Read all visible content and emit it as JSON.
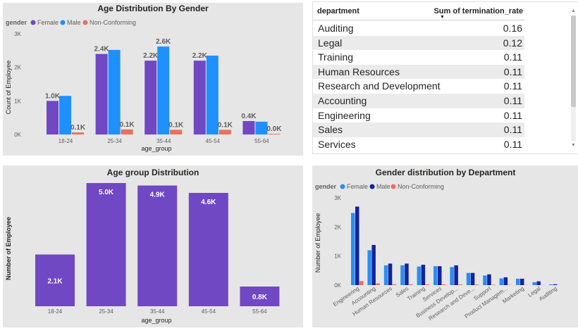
{
  "colors": {
    "female": "#7048c4",
    "male": "#1e90ff",
    "non_conforming": "#e8715f",
    "purple": "#7048c4",
    "dept_female": "#2b8ef0",
    "dept_male": "#12239e",
    "dept_nc": "#e8715f"
  },
  "age_gender_chart": {
    "title": "Age Distribution By Gender",
    "legend_title": "gender",
    "ylabel": "Count of Employee",
    "xlabel": "age_group",
    "y_ticks": [
      "0K",
      "1K",
      "2K",
      "3K"
    ]
  },
  "termination_table": {
    "col_department": "department",
    "col_rate": "Sum of termination_rate",
    "rows": [
      {
        "department": "Auditing",
        "rate": "0.16"
      },
      {
        "department": "Legal",
        "rate": "0.12"
      },
      {
        "department": "Training",
        "rate": "0.11"
      },
      {
        "department": "Human Resources",
        "rate": "0.11"
      },
      {
        "department": "Research and Development",
        "rate": "0.11"
      },
      {
        "department": "Accounting",
        "rate": "0.11"
      },
      {
        "department": "Engineering",
        "rate": "0.11"
      },
      {
        "department": "Sales",
        "rate": "0.11"
      },
      {
        "department": "Services",
        "rate": "0.11"
      }
    ]
  },
  "age_group_chart": {
    "title": "Age group Distribution",
    "ylabel": "Number of Employee",
    "xlabel": "age_group"
  },
  "dept_gender_chart": {
    "title": "Gender distribution by Department",
    "legend_title": "gender",
    "ylabel": "Number of Employee",
    "y_ticks": [
      "0K",
      "1K",
      "2K",
      "3K"
    ]
  },
  "chart_data": [
    {
      "type": "bar",
      "title": "Age Distribution By Gender",
      "xlabel": "age_group",
      "ylabel": "Count of Employee",
      "categories": [
        "18-24",
        "25-34",
        "35-44",
        "45-54",
        "55-64"
      ],
      "ylim": [
        0,
        3000
      ],
      "legend": "top-left",
      "series": [
        {
          "name": "Female",
          "values": [
            1000,
            2400,
            2200,
            2200,
            400
          ],
          "labels": [
            "1.0K",
            "2.4K",
            "2.2K",
            "2.2K",
            "0.4K"
          ]
        },
        {
          "name": "Male",
          "values": [
            1150,
            2520,
            2620,
            2350,
            380
          ],
          "labels": [
            "",
            "",
            "2.6K",
            "",
            ""
          ]
        },
        {
          "name": "Non-Conforming",
          "values": [
            60,
            150,
            140,
            140,
            20
          ],
          "labels": [
            "0.1K",
            "0.1K",
            "0.1K",
            "0.1K",
            "0.0K"
          ]
        }
      ]
    },
    {
      "type": "bar",
      "title": "Age group Distribution",
      "xlabel": "age_group",
      "ylabel": "Number of Employee",
      "categories": [
        "18-24",
        "25-34",
        "35-44",
        "45-54",
        "55-64"
      ],
      "values": [
        2100,
        5000,
        4900,
        4600,
        800
      ],
      "labels": [
        "2.1K",
        "5.0K",
        "4.9K",
        "4.6K",
        "0.8K"
      ],
      "ylim": [
        0,
        5000
      ]
    },
    {
      "type": "bar",
      "title": "Gender distribution by Department",
      "ylabel": "Number of Employee",
      "categories": [
        "Engineering",
        "Accounting",
        "Human Resources",
        "Sales",
        "Training",
        "Services",
        "Business Develop...",
        "Research and Deve...",
        "Support",
        "Product Managem...",
        "Marketing",
        "Legal",
        "Auditing"
      ],
      "ylim": [
        0,
        3000
      ],
      "legend": "top-left",
      "series": [
        {
          "name": "Female",
          "values": [
            2480,
            1200,
            680,
            680,
            640,
            650,
            620,
            420,
            330,
            230,
            220,
            100,
            25
          ]
        },
        {
          "name": "Male",
          "values": [
            2700,
            1380,
            740,
            740,
            700,
            650,
            680,
            420,
            370,
            270,
            220,
            130,
            30
          ]
        },
        {
          "name": "Non-Conforming",
          "values": [
            140,
            60,
            30,
            30,
            25,
            25,
            25,
            20,
            15,
            10,
            8,
            5,
            0
          ]
        }
      ]
    }
  ]
}
